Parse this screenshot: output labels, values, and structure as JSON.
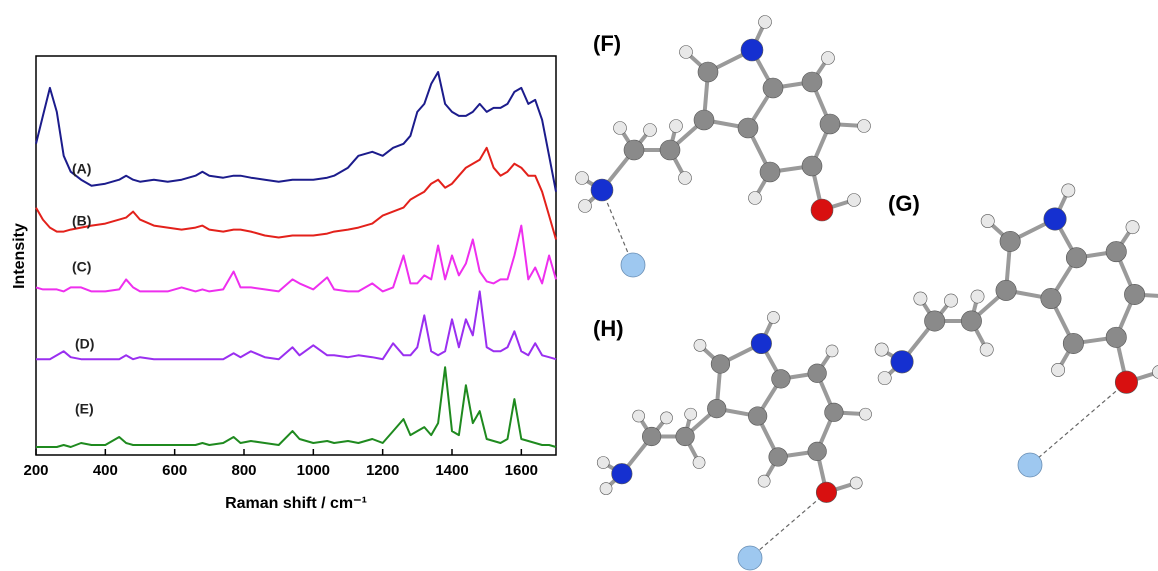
{
  "chart_data": {
    "type": "line",
    "x_label": "Raman shift / cm⁻¹",
    "y_label": "Intensity",
    "xlim": [
      200,
      1700
    ],
    "xticks": [
      200,
      400,
      600,
      800,
      1000,
      1200,
      1400,
      1600
    ],
    "ylim": [
      0,
      100
    ],
    "x": [
      200,
      220,
      240,
      260,
      280,
      300,
      330,
      360,
      400,
      440,
      460,
      480,
      500,
      540,
      580,
      620,
      660,
      680,
      700,
      740,
      770,
      790,
      820,
      860,
      900,
      940,
      960,
      1000,
      1040,
      1060,
      1100,
      1130,
      1170,
      1200,
      1230,
      1260,
      1280,
      1300,
      1320,
      1340,
      1360,
      1380,
      1400,
      1420,
      1440,
      1460,
      1480,
      1500,
      1520,
      1540,
      1560,
      1580,
      1600,
      1620,
      1640,
      1660,
      1680,
      1700
    ],
    "series": [
      {
        "name": "(A)",
        "color": "#1c1c8c",
        "values": [
          78,
          85,
          92,
          86,
          75,
          71,
          69,
          67.5,
          68,
          69,
          70,
          69,
          68.5,
          69,
          68.5,
          69,
          70,
          71,
          70,
          69.5,
          70,
          70,
          69.5,
          69,
          68.5,
          69,
          69,
          69,
          69.5,
          70,
          72,
          75,
          76,
          75,
          77,
          78,
          80,
          86,
          88,
          93,
          96,
          88,
          86,
          85,
          85,
          86,
          88,
          86,
          87,
          87,
          88,
          91,
          92,
          88,
          89,
          84,
          75,
          66
        ]
      },
      {
        "name": "(B)",
        "color": "#e3211b",
        "values": [
          62,
          59,
          57,
          56,
          56,
          56.5,
          57,
          57.5,
          58,
          59,
          59.5,
          61,
          59,
          57.5,
          57,
          56.5,
          57,
          57.5,
          56.5,
          56,
          56.5,
          56.5,
          56,
          55,
          54.5,
          55,
          55,
          55,
          55.5,
          56,
          56.5,
          57,
          58,
          60,
          61,
          62,
          64,
          65,
          66,
          68,
          69,
          67,
          68,
          70,
          72,
          73,
          74,
          77,
          72,
          70,
          71,
          73,
          72,
          70,
          70,
          66,
          60,
          54
        ]
      },
      {
        "name": "(C)",
        "color": "#ee2fee",
        "values": [
          42,
          41.5,
          41.5,
          41.5,
          41,
          42,
          42,
          41,
          41,
          41.5,
          44,
          42,
          41,
          41,
          41,
          42,
          41,
          41.5,
          41,
          41.5,
          46,
          42,
          42,
          41.5,
          41,
          44,
          43,
          41.5,
          44.5,
          41.5,
          41,
          41,
          43,
          41,
          42,
          50,
          43,
          43,
          45,
          44,
          52.5,
          44,
          50,
          45,
          48,
          54,
          46,
          43.5,
          43,
          44,
          44,
          50,
          57.5,
          44,
          47,
          43,
          50,
          44
        ]
      },
      {
        "name": "(D)",
        "color": "#9a2ff0",
        "values": [
          24,
          24,
          24,
          25,
          26,
          24.5,
          24,
          24,
          24,
          24,
          25,
          24,
          24.5,
          24,
          24,
          24,
          24,
          24,
          24,
          24,
          25.5,
          24.5,
          26,
          24.5,
          24,
          27,
          25,
          27.5,
          25,
          25,
          24.5,
          25,
          24.5,
          24,
          28,
          25,
          25,
          27,
          35,
          26,
          25,
          26,
          34,
          27,
          34,
          30,
          41,
          27,
          26,
          26,
          27,
          31,
          26,
          25,
          28,
          25,
          24.5,
          24
        ]
      },
      {
        "name": "(E)",
        "color": "#1f8a1f",
        "values": [
          2,
          2,
          2,
          2,
          2.5,
          2,
          3,
          2.5,
          2.5,
          4.5,
          3,
          2.5,
          2.5,
          2.5,
          2.5,
          2.5,
          2.5,
          3,
          2.5,
          3,
          4.5,
          3,
          3.5,
          3,
          2.5,
          6,
          4,
          3,
          3.5,
          3,
          3.5,
          3,
          4,
          3,
          6,
          9,
          5,
          6,
          7,
          5,
          8,
          22,
          6,
          5,
          17.5,
          8,
          11,
          4,
          3.5,
          3,
          4,
          14,
          4,
          3.5,
          3,
          2.5,
          2.5,
          2
        ]
      }
    ]
  },
  "structures": {
    "labels": [
      "(F)",
      "(G)",
      "(H)"
    ]
  }
}
